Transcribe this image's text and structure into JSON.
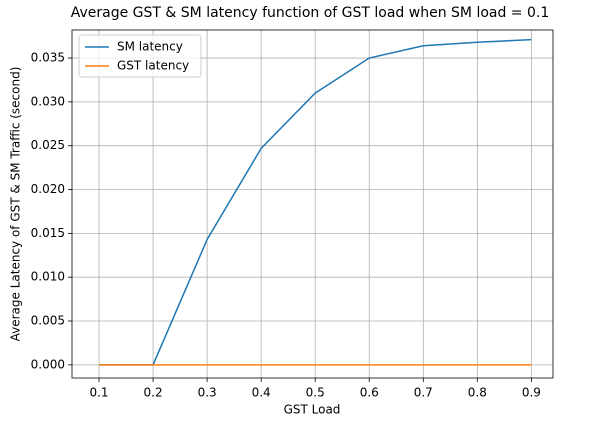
{
  "chart_data": {
    "type": "line",
    "title": "Average GST & SM latency function of GST load when SM load = 0.1",
    "x_label": "GST Load",
    "y_label": "Average Latency of GST & SM Traffic (second)",
    "x": [
      0.1,
      0.2,
      0.3,
      0.4,
      0.5,
      0.6,
      0.7,
      0.8,
      0.9
    ],
    "series": [
      {
        "name": "SM latency",
        "color": "#1f77b4",
        "values": [
          0,
          0,
          0.0143,
          0.0247,
          0.031,
          0.035,
          0.0364,
          0.0368,
          0.0371
        ]
      },
      {
        "name": "GST latency",
        "color": "#ff7f0e",
        "values": [
          0,
          0,
          0,
          0,
          0,
          0,
          0,
          0,
          0
        ]
      }
    ],
    "xlim": [
      0.05,
      0.94
    ],
    "ylim": [
      -0.0015,
      0.0382
    ],
    "xticks": [
      0.1,
      0.2,
      0.3,
      0.4,
      0.5,
      0.6,
      0.7,
      0.8,
      0.9
    ],
    "yticks": [
      {
        "value": 0,
        "label": "0.000"
      },
      {
        "value": 0.005,
        "label": "0.005"
      },
      {
        "value": 0.01,
        "label": "0.010"
      },
      {
        "value": 0.015,
        "label": "0.015"
      },
      {
        "value": 0.02,
        "label": "0.020"
      },
      {
        "value": 0.025,
        "label": "0.025"
      },
      {
        "value": 0.03,
        "label": "0.030"
      },
      {
        "value": 0.035,
        "label": "0.035"
      }
    ],
    "grid": true,
    "legend": "upper left"
  }
}
